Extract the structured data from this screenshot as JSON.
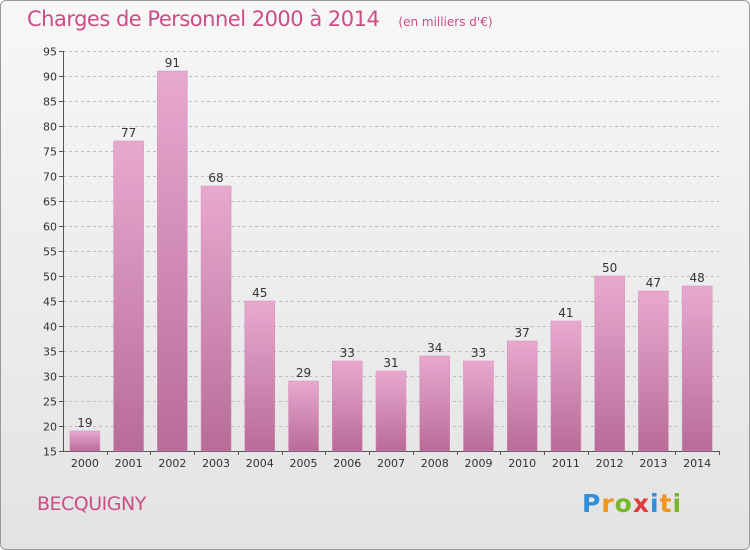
{
  "header": {
    "title": "Charges de Personnel 2000 à 2014",
    "subtitle": "(en milliers d'€)"
  },
  "place": "BECQUIGNY",
  "brand": {
    "letters": [
      "P",
      "r",
      "o",
      "x",
      "i",
      "t",
      "i"
    ],
    "colors": [
      "#2f8fd8",
      "#f0961e",
      "#78b82a",
      "#e23b3b",
      "#2f8fd8",
      "#f0961e",
      "#78b82a"
    ]
  },
  "colors": {
    "bar_top": "#e8a9cf",
    "bar_bottom": "#b86c98",
    "grid": "#bdbdbd",
    "title": "#cc4d84"
  },
  "chart_data": {
    "type": "bar",
    "title": "Charges de Personnel 2000 à 2014",
    "subtitle": "(en milliers d'€)",
    "categories": [
      "2000",
      "2001",
      "2002",
      "2003",
      "2004",
      "2005",
      "2006",
      "2007",
      "2008",
      "2009",
      "2010",
      "2011",
      "2012",
      "2013",
      "2014"
    ],
    "values": [
      19,
      77,
      91,
      68,
      45,
      29,
      33,
      31,
      34,
      33,
      37,
      41,
      50,
      47,
      48
    ],
    "ylim": [
      15,
      95
    ],
    "yticks": [
      15,
      20,
      25,
      30,
      35,
      40,
      45,
      50,
      55,
      60,
      65,
      70,
      75,
      80,
      85,
      90,
      95
    ],
    "grid": true,
    "legend": "none"
  }
}
